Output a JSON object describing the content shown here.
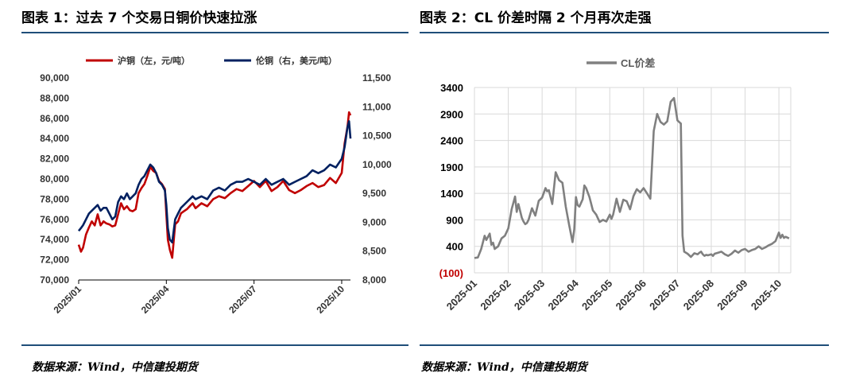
{
  "left": {
    "title": "图表 1：过去 7 个交易日铜价快速拉涨",
    "source": "数据来源：Wind，中信建投期货"
  },
  "right": {
    "title": "图表 2：CL 价差时隔 2 个月再次走强",
    "source": "数据来源：Wind，中信建投期货"
  },
  "chart_data": [
    {
      "type": "line",
      "title": "",
      "x_tick_labels": [
        "2025/01",
        "2025/04",
        "2025/07",
        "2025/10"
      ],
      "x_tick_months": [
        0,
        3,
        6,
        9
      ],
      "x_range_months": [
        0,
        9.3
      ],
      "ylabel_left": "",
      "ylabel_right": "",
      "ylim_left": [
        70000,
        90000
      ],
      "yticks_left": [
        70000,
        72000,
        74000,
        76000,
        78000,
        80000,
        82000,
        84000,
        86000,
        88000,
        90000
      ],
      "ytick_labels_left": [
        "70,000",
        "72,000",
        "74,000",
        "76,000",
        "78,000",
        "80,000",
        "82,000",
        "84,000",
        "86,000",
        "88,000",
        "90,000"
      ],
      "ylim_right": [
        8000,
        11500
      ],
      "yticks_right": [
        8000,
        8500,
        9000,
        9500,
        10000,
        10500,
        11000,
        11500
      ],
      "ytick_labels_right": [
        "8,000",
        "8,500",
        "9,000",
        "9,500",
        "10,000",
        "10,500",
        "11,000",
        "11,500"
      ],
      "legend_position": "top",
      "series": [
        {
          "name": "沪铜（左，元/吨）",
          "color": "#c00000",
          "axis": "left",
          "x": [
            0.0,
            0.08,
            0.15,
            0.25,
            0.35,
            0.45,
            0.55,
            0.65,
            0.75,
            0.85,
            0.95,
            1.05,
            1.15,
            1.25,
            1.35,
            1.45,
            1.55,
            1.65,
            1.75,
            1.85,
            1.95,
            2.05,
            2.15,
            2.25,
            2.35,
            2.45,
            2.55,
            2.65,
            2.75,
            2.85,
            2.95,
            3.0,
            3.05,
            3.12,
            3.2,
            3.3,
            3.4,
            3.5,
            3.6,
            3.7,
            3.8,
            3.9,
            4.0,
            4.2,
            4.4,
            4.6,
            4.8,
            5.0,
            5.2,
            5.4,
            5.6,
            5.8,
            6.0,
            6.2,
            6.4,
            6.6,
            6.8,
            7.0,
            7.2,
            7.4,
            7.6,
            7.8,
            8.0,
            8.2,
            8.4,
            8.6,
            8.8,
            9.0,
            9.1,
            9.2,
            9.25,
            9.3
          ],
          "values": [
            73500,
            72800,
            73200,
            74500,
            75200,
            75800,
            75400,
            76500,
            75400,
            75800,
            75600,
            75500,
            75300,
            75400,
            76500,
            77600,
            77000,
            77300,
            76900,
            76800,
            77000,
            78600,
            79100,
            79500,
            80300,
            81200,
            80800,
            80600,
            79800,
            79500,
            79000,
            76500,
            74000,
            73000,
            72200,
            75500,
            75800,
            76600,
            76800,
            77000,
            77300,
            77600,
            77100,
            77600,
            77300,
            78000,
            78300,
            78100,
            78600,
            79000,
            78800,
            79300,
            79800,
            79200,
            79800,
            78800,
            79200,
            79800,
            78900,
            78600,
            78900,
            79300,
            79600,
            79200,
            79400,
            80100,
            79600,
            80600,
            83500,
            85200,
            86600,
            86300
          ]
        },
        {
          "name": "伦铜（右，美元/吨）",
          "color": "#002060",
          "axis": "right",
          "x": [
            0.0,
            0.08,
            0.15,
            0.25,
            0.35,
            0.45,
            0.55,
            0.65,
            0.75,
            0.85,
            0.95,
            1.05,
            1.15,
            1.25,
            1.35,
            1.45,
            1.55,
            1.65,
            1.75,
            1.85,
            1.95,
            2.05,
            2.15,
            2.25,
            2.35,
            2.45,
            2.55,
            2.65,
            2.75,
            2.85,
            2.95,
            3.0,
            3.05,
            3.12,
            3.2,
            3.3,
            3.4,
            3.5,
            3.6,
            3.7,
            3.8,
            3.9,
            4.0,
            4.2,
            4.4,
            4.6,
            4.8,
            5.0,
            5.2,
            5.4,
            5.6,
            5.8,
            6.0,
            6.2,
            6.4,
            6.6,
            6.8,
            7.0,
            7.2,
            7.4,
            7.6,
            7.8,
            8.0,
            8.2,
            8.4,
            8.6,
            8.8,
            9.0,
            9.1,
            9.2,
            9.25,
            9.3
          ],
          "values": [
            8850,
            8900,
            8950,
            9050,
            9150,
            9200,
            9250,
            9300,
            9200,
            9250,
            9250,
            9150,
            9050,
            9100,
            9350,
            9450,
            9400,
            9500,
            9400,
            9450,
            9500,
            9650,
            9750,
            9800,
            9900,
            10000,
            9950,
            9850,
            9700,
            9650,
            9550,
            9300,
            8900,
            8700,
            8650,
            9050,
            9150,
            9250,
            9300,
            9350,
            9400,
            9450,
            9400,
            9450,
            9400,
            9550,
            9600,
            9550,
            9650,
            9700,
            9700,
            9750,
            9700,
            9650,
            9750,
            9650,
            9700,
            9750,
            9650,
            9700,
            9750,
            9800,
            9900,
            9850,
            9900,
            10000,
            9950,
            10100,
            10300,
            10650,
            10750,
            10450
          ]
        }
      ]
    },
    {
      "type": "line",
      "title": "",
      "x_tick_labels": [
        "2025-01",
        "2025-02",
        "2025-03",
        "2025-04",
        "2025-05",
        "2025-06",
        "2025-07",
        "2025-08",
        "2025-09",
        "2025-10"
      ],
      "x_tick_months": [
        0,
        1,
        2,
        3,
        4,
        5,
        6,
        7,
        8,
        9
      ],
      "x_range_months": [
        0,
        9.35
      ],
      "ylabel": "",
      "ylim": [
        -100,
        3400
      ],
      "yticks": [
        -100,
        400,
        900,
        1400,
        1900,
        2400,
        2900,
        3400
      ],
      "ytick_labels": [
        "(100)",
        "400",
        "900",
        "1400",
        "1900",
        "2400",
        "2900",
        "3400"
      ],
      "ytick_colors": [
        "#c00000",
        "#000000",
        "#000000",
        "#000000",
        "#000000",
        "#000000",
        "#000000",
        "#000000"
      ],
      "legend_position": "top",
      "series": [
        {
          "name": "CL价差",
          "color": "#808080",
          "x": [
            0.0,
            0.1,
            0.2,
            0.3,
            0.35,
            0.45,
            0.5,
            0.55,
            0.6,
            0.7,
            0.8,
            0.9,
            1.0,
            1.1,
            1.2,
            1.25,
            1.3,
            1.4,
            1.45,
            1.5,
            1.55,
            1.6,
            1.7,
            1.8,
            1.9,
            2.0,
            2.1,
            2.15,
            2.2,
            2.3,
            2.4,
            2.5,
            2.6,
            2.7,
            2.8,
            2.9,
            2.95,
            3.0,
            3.05,
            3.1,
            3.2,
            3.25,
            3.3,
            3.4,
            3.5,
            3.6,
            3.7,
            3.8,
            3.9,
            4.0,
            4.05,
            4.1,
            4.2,
            4.3,
            4.4,
            4.5,
            4.6,
            4.7,
            4.8,
            4.9,
            5.0,
            5.1,
            5.2,
            5.3,
            5.4,
            5.5,
            5.6,
            5.7,
            5.8,
            5.9,
            6.0,
            6.05,
            6.1,
            6.15,
            6.2,
            6.3,
            6.4,
            6.5,
            6.6,
            6.65,
            6.7,
            6.75,
            6.8,
            6.85,
            6.9,
            6.95,
            7.0,
            7.05,
            7.1,
            7.2,
            7.3,
            7.4,
            7.5,
            7.6,
            7.7,
            7.8,
            7.9,
            8.0,
            8.1,
            8.2,
            8.3,
            8.4,
            8.5,
            8.6,
            8.7,
            8.8,
            8.9,
            9.0,
            9.05,
            9.1,
            9.15,
            9.2,
            9.3
          ],
          "values": [
            180,
            190,
            350,
            600,
            520,
            640,
            430,
            470,
            350,
            400,
            550,
            600,
            740,
            1100,
            1340,
            1050,
            1200,
            940,
            870,
            820,
            840,
            900,
            1120,
            980,
            1260,
            1320,
            1500,
            1440,
            1460,
            1200,
            1800,
            1650,
            1600,
            1150,
            800,
            480,
            720,
            1330,
            1180,
            1150,
            1290,
            1550,
            1500,
            1330,
            1080,
            1000,
            860,
            900,
            870,
            1000,
            920,
            1000,
            1300,
            1050,
            1280,
            1250,
            1100,
            1350,
            1480,
            1420,
            1500,
            1400,
            1300,
            2580,
            2900,
            2750,
            2700,
            2760,
            3130,
            3200,
            2780,
            2750,
            2720,
            600,
            300,
            260,
            200,
            270,
            250,
            280,
            300,
            250,
            220,
            240,
            230,
            240,
            250,
            220,
            260,
            280,
            300,
            250,
            220,
            260,
            320,
            280,
            330,
            350,
            300,
            330,
            350,
            400,
            350,
            380,
            420,
            450,
            500,
            660,
            560,
            620,
            560,
            580,
            550
          ]
        }
      ]
    }
  ]
}
